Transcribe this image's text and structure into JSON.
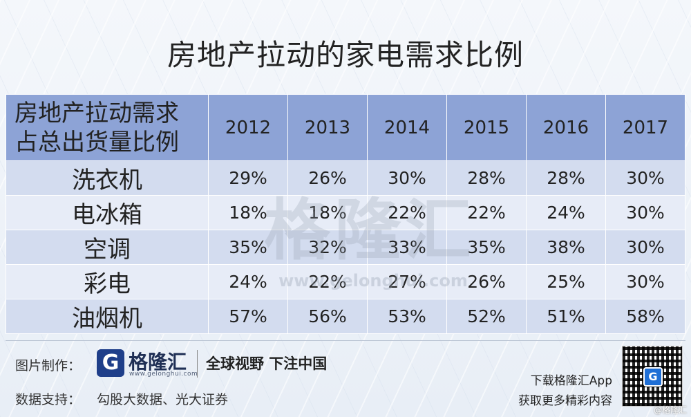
{
  "title": "房地产拉动的家电需求比例",
  "chart_data": {
    "type": "table",
    "title": "房地产拉动的家电需求比例",
    "header_label_lines": [
      "房地产拉动需求",
      "占总出货量比例"
    ],
    "columns": [
      "2012",
      "2013",
      "2014",
      "2015",
      "2016",
      "2017"
    ],
    "rows": [
      {
        "label": "洗衣机",
        "values": [
          "29%",
          "26%",
          "30%",
          "28%",
          "28%",
          "30%"
        ]
      },
      {
        "label": "电冰箱",
        "values": [
          "18%",
          "18%",
          "22%",
          "22%",
          "24%",
          "30%"
        ]
      },
      {
        "label": "空调",
        "values": [
          "35%",
          "32%",
          "33%",
          "35%",
          "38%",
          "30%"
        ]
      },
      {
        "label": "彩电",
        "values": [
          "24%",
          "22%",
          "27%",
          "26%",
          "25%",
          "30%"
        ]
      },
      {
        "label": "油烟机",
        "values": [
          "57%",
          "56%",
          "53%",
          "52%",
          "51%",
          "58%"
        ]
      }
    ]
  },
  "watermark": {
    "text": "格隆汇",
    "url": "www.gelonghui.com"
  },
  "footer": {
    "made_by_label": "图片制作：",
    "logo_letter": "G",
    "logo_name": "格隆汇",
    "logo_url": "www.gelonghui.com",
    "slogan": "全球视野 下注中国",
    "data_support_label": "数据支持：",
    "data_support_value": "勾股大数据、光大证券",
    "download_text": "下载格隆汇App",
    "more_text": "获取更多精彩内容",
    "qr_center_letter": "G",
    "corner_mark": "@格隆汇"
  },
  "colors": {
    "header_bg": "#8da3d6",
    "row_odd": "#d3dcef",
    "row_even": "#e7ecf7",
    "brand": "#1f3f8a"
  }
}
